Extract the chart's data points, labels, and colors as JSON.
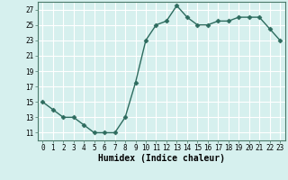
{
  "x": [
    0,
    1,
    2,
    3,
    4,
    5,
    6,
    7,
    8,
    9,
    10,
    11,
    12,
    13,
    14,
    15,
    16,
    17,
    18,
    19,
    20,
    21,
    22,
    23
  ],
  "y": [
    15,
    14,
    13,
    13,
    12,
    11,
    11,
    11,
    13,
    17.5,
    23,
    25,
    25.5,
    27.5,
    26,
    25,
    25,
    25.5,
    25.5,
    26,
    26,
    26,
    24.5,
    23
  ],
  "line_color": "#2d6b5e",
  "marker": "D",
  "marker_size": 2.5,
  "linewidth": 1.0,
  "xlabel": "Humidex (Indice chaleur)",
  "xlabel_fontsize": 7,
  "xlim": [
    -0.5,
    23.5
  ],
  "ylim": [
    10,
    28
  ],
  "yticks": [
    11,
    13,
    15,
    17,
    19,
    21,
    23,
    25,
    27
  ],
  "xticks": [
    0,
    1,
    2,
    3,
    4,
    5,
    6,
    7,
    8,
    9,
    10,
    11,
    12,
    13,
    14,
    15,
    16,
    17,
    18,
    19,
    20,
    21,
    22,
    23
  ],
  "xtick_labels": [
    "0",
    "1",
    "2",
    "3",
    "4",
    "5",
    "6",
    "7",
    "8",
    "9",
    "10",
    "11",
    "12",
    "13",
    "14",
    "15",
    "16",
    "17",
    "18",
    "19",
    "20",
    "21",
    "22",
    "23"
  ],
  "background_color": "#d6f0ee",
  "grid_color": "#ffffff",
  "tick_fontsize": 5.5,
  "spine_color": "#4a7a6a"
}
